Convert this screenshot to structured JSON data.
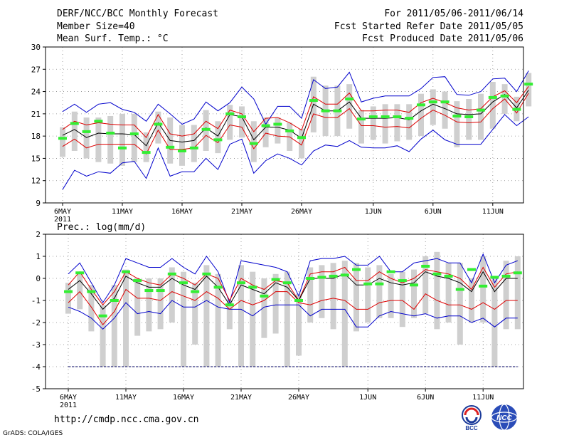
{
  "header": {
    "title": "DERF/NCC/BCC Monthly Forecast",
    "member_size": "Member Size=40",
    "variable": "Mean Surf. Temp.: °C",
    "period": "For 2011/05/06-2011/06/14",
    "started": "Fcst Started Refer Date 2011/05/05",
    "produced": "Fcst Produced Date 2011/05/06"
  },
  "footer": {
    "url": "http://cmdp.ncc.cma.gov.cn",
    "credit": "GrADS: COLA/IGES",
    "logo1_text": "BCC",
    "logo2_text": "NCC"
  },
  "colors": {
    "ensemble_mean": "#000000",
    "spread_band": "#dd0000",
    "extreme_envelope": "#0000cc",
    "median_marker": "#33ee33",
    "box": "#cfcfcf",
    "grid": "#888888"
  },
  "chart_data": [
    {
      "type": "box-line",
      "title": "Mean Surf. Temp.: °C",
      "xlabel": "",
      "ylabel": "°C",
      "ylim": [
        9,
        30
      ],
      "yticks": [
        9,
        12,
        15,
        18,
        21,
        24,
        27,
        30
      ],
      "x_ticks": [
        {
          "day": 1,
          "label": "6MAY",
          "sub": "2011"
        },
        {
          "day": 6,
          "label": "11MAY"
        },
        {
          "day": 11,
          "label": "16MAY"
        },
        {
          "day": 16,
          "label": "21MAY"
        },
        {
          "day": 21,
          "label": "26MAY"
        },
        {
          "day": 27,
          "label": "1JUN"
        },
        {
          "day": 32,
          "label": "6JUN"
        },
        {
          "day": 37,
          "label": "11JUN"
        }
      ],
      "days": 40,
      "series": [
        {
          "name": "max",
          "values": [
            21.3,
            22.3,
            21.2,
            22.3,
            22.5,
            21.6,
            21.2,
            20.0,
            22.3,
            21.0,
            19.6,
            20.3,
            22.6,
            21.4,
            22.5,
            24.6,
            23.0,
            19.6,
            22.0,
            22.0,
            20.4,
            25.6,
            24.4,
            24.6,
            26.6,
            22.6,
            23.1,
            23.4,
            23.4,
            23.4,
            24.4,
            25.9,
            26.0,
            23.6,
            23.5,
            24.0,
            25.7,
            25.8,
            24.0,
            26.8
          ]
        },
        {
          "name": "upper",
          "values": [
            18.9,
            20.0,
            19.5,
            19.8,
            19.6,
            19.5,
            19.5,
            17.8,
            20.9,
            18.3,
            18.0,
            18.3,
            20.0,
            19.0,
            21.5,
            21.0,
            18.6,
            20.4,
            20.5,
            19.8,
            18.8,
            23.3,
            22.3,
            22.3,
            23.8,
            21.4,
            21.4,
            21.5,
            21.5,
            21.2,
            22.5,
            23.1,
            22.5,
            21.8,
            21.5,
            21.7,
            23.3,
            24.1,
            22.5,
            24.7
          ]
        },
        {
          "name": "mean",
          "values": [
            18.1,
            18.9,
            17.8,
            18.4,
            18.3,
            18.3,
            18.2,
            16.7,
            19.8,
            17.4,
            17.2,
            17.4,
            19.1,
            18.0,
            20.9,
            20.6,
            17.5,
            19.2,
            19.2,
            18.8,
            17.7,
            22.3,
            21.4,
            21.4,
            22.6,
            20.4,
            20.4,
            20.4,
            20.5,
            20.2,
            21.4,
            22.3,
            21.7,
            21.0,
            20.9,
            21.0,
            22.6,
            23.6,
            21.8,
            24.2
          ]
        },
        {
          "name": "lower",
          "values": [
            16.6,
            17.6,
            16.4,
            16.9,
            16.9,
            16.9,
            16.9,
            15.6,
            18.8,
            16.2,
            16.2,
            16.4,
            18.1,
            17.1,
            19.5,
            19.2,
            16.3,
            18.4,
            18.0,
            17.9,
            16.8,
            21.0,
            20.5,
            20.5,
            21.7,
            19.4,
            19.4,
            19.2,
            19.3,
            19.1,
            20.4,
            21.5,
            20.8,
            19.9,
            19.8,
            19.9,
            21.7,
            23.0,
            21.1,
            23.8
          ]
        },
        {
          "name": "min",
          "values": [
            10.8,
            13.4,
            12.6,
            13.2,
            13.0,
            14.4,
            14.6,
            12.3,
            16.4,
            12.6,
            13.2,
            13.2,
            15.0,
            13.5,
            16.9,
            17.6,
            13.0,
            14.7,
            15.6,
            15.0,
            14.1,
            16.0,
            16.8,
            16.6,
            17.4,
            16.5,
            16.4,
            16.4,
            16.7,
            15.9,
            17.6,
            18.8,
            17.5,
            16.9,
            16.9,
            16.9,
            18.9,
            20.9,
            19.4,
            20.6
          ]
        },
        {
          "name": "median",
          "values": [
            17.7,
            19.7,
            18.6,
            20.0,
            18.4,
            16.4,
            18.3,
            15.8,
            19.6,
            16.5,
            16.0,
            16.4,
            18.9,
            17.5,
            21.0,
            20.6,
            17.0,
            19.4,
            19.6,
            18.7,
            17.8,
            22.8,
            21.4,
            21.4,
            23.0,
            20.3,
            20.6,
            20.6,
            20.6,
            20.4,
            22.2,
            22.6,
            22.6,
            20.7,
            20.6,
            21.5,
            23.2,
            23.4,
            21.6,
            25.0
          ]
        },
        {
          "name": "box_top",
          "values": [
            19.2,
            21.3,
            20.5,
            20.5,
            20.7,
            21.0,
            21.0,
            18.5,
            21.3,
            20.5,
            19.5,
            19.5,
            21.5,
            20.0,
            22.2,
            22.0,
            20.0,
            20.5,
            20.5,
            19.8,
            19.0,
            26.0,
            24.8,
            24.8,
            25.0,
            21.5,
            22.0,
            22.3,
            22.3,
            22.3,
            23.7,
            24.3,
            24.0,
            22.7,
            23.0,
            23.7,
            25.3,
            25.0,
            23.3,
            26.5
          ]
        },
        {
          "name": "box_bottom",
          "values": [
            15.2,
            16.0,
            15.0,
            14.5,
            14.3,
            14.0,
            14.5,
            14.5,
            17.0,
            14.3,
            14.0,
            14.5,
            16.0,
            15.7,
            17.5,
            17.8,
            14.5,
            16.5,
            17.0,
            16.0,
            15.0,
            18.5,
            18.0,
            18.0,
            19.0,
            17.0,
            17.5,
            17.0,
            17.3,
            17.5,
            18.0,
            19.5,
            19.0,
            16.5,
            17.5,
            17.5,
            19.0,
            21.0,
            20.0,
            22.0
          ]
        }
      ]
    },
    {
      "type": "box-line",
      "title": "Prec.: log(mm/d)",
      "xlabel": "",
      "ylabel": "log(mm/d)",
      "ylim": [
        -5,
        2
      ],
      "yticks": [
        -5,
        -4,
        -3,
        -2,
        -1,
        0,
        1,
        2
      ],
      "x_ticks": [
        {
          "day": 1,
          "label": "6MAY",
          "sub": "2011"
        },
        {
          "day": 6,
          "label": "11MAY"
        },
        {
          "day": 11,
          "label": "16MAY"
        },
        {
          "day": 16,
          "label": "21MAY"
        },
        {
          "day": 21,
          "label": "26MAY"
        },
        {
          "day": 27,
          "label": "1JUN"
        },
        {
          "day": 32,
          "label": "6JUN"
        },
        {
          "day": 37,
          "label": "11JUN"
        }
      ],
      "days": 40,
      "reference_line": -4,
      "series": [
        {
          "name": "max",
          "values": [
            0.2,
            0.7,
            -0.2,
            -1.1,
            -0.3,
            0.9,
            0.7,
            0.5,
            0.5,
            0.9,
            0.5,
            0.2,
            1.0,
            0.3,
            -1.1,
            0.8,
            0.7,
            0.6,
            0.5,
            0.3,
            -0.8,
            0.8,
            0.9,
            0.9,
            1.0,
            0.6,
            0.6,
            1.0,
            0.3,
            0.3,
            0.7,
            0.8,
            0.9,
            0.7,
            0.7,
            -0.2,
            1.1,
            -0.2,
            0.6,
            0.8
          ]
        },
        {
          "name": "upper",
          "values": [
            -0.3,
            0.3,
            -0.5,
            -1.2,
            -0.6,
            0.3,
            0.0,
            -0.2,
            -0.3,
            0.2,
            0.0,
            -0.3,
            0.2,
            0.0,
            -1.0,
            0.0,
            -0.3,
            -0.5,
            -0.1,
            -0.2,
            -1.0,
            0.2,
            0.3,
            0.3,
            0.5,
            -0.1,
            -0.1,
            0.3,
            0.0,
            -0.2,
            0.0,
            0.4,
            0.3,
            0.2,
            0.0,
            -0.5,
            0.5,
            -0.4,
            0.2,
            0.3
          ]
        },
        {
          "name": "mean",
          "values": [
            -0.5,
            -0.1,
            -0.7,
            -1.4,
            -0.9,
            0.1,
            -0.2,
            -0.4,
            -0.4,
            0.0,
            -0.3,
            -0.5,
            0.1,
            -0.4,
            -1.2,
            -0.3,
            -0.5,
            -0.7,
            -0.2,
            -0.4,
            -1.0,
            0.0,
            0.0,
            0.0,
            0.2,
            -0.3,
            -0.3,
            0.0,
            -0.2,
            -0.3,
            -0.2,
            0.3,
            0.1,
            0.0,
            -0.2,
            -0.6,
            0.3,
            -0.6,
            0.0,
            0.0
          ]
        },
        {
          "name": "lower",
          "values": [
            -1.1,
            -0.6,
            -1.3,
            -2.1,
            -1.5,
            -0.5,
            -0.9,
            -0.9,
            -1.0,
            -0.6,
            -0.8,
            -1.0,
            -0.6,
            -0.9,
            -1.4,
            -1.0,
            -1.2,
            -1.0,
            -0.6,
            -0.6,
            -1.1,
            -1.2,
            -1.0,
            -0.9,
            -1.0,
            -1.4,
            -1.4,
            -1.1,
            -1.0,
            -1.0,
            -1.4,
            -0.7,
            -1.0,
            -1.2,
            -1.2,
            -1.4,
            -1.1,
            -1.4,
            -1.0,
            -1.0
          ]
        },
        {
          "name": "min",
          "values": [
            -1.3,
            -1.5,
            -1.8,
            -2.3,
            -1.8,
            -1.1,
            -1.6,
            -1.5,
            -1.6,
            -1.0,
            -1.3,
            -1.3,
            -1.0,
            -1.3,
            -1.4,
            -1.4,
            -1.7,
            -1.3,
            -1.2,
            -1.2,
            -1.2,
            -1.7,
            -1.4,
            -1.4,
            -1.4,
            -2.2,
            -2.2,
            -1.7,
            -1.5,
            -1.6,
            -1.7,
            -1.6,
            -1.8,
            -1.7,
            -1.7,
            -2.0,
            -1.8,
            -2.2,
            -1.8,
            -1.8
          ]
        },
        {
          "name": "median",
          "values": [
            -0.6,
            0.25,
            -0.6,
            -1.7,
            -1.0,
            0.3,
            -0.1,
            -0.55,
            -0.55,
            0.2,
            -0.2,
            -0.6,
            0.2,
            -0.4,
            -1.2,
            -0.2,
            -0.4,
            -0.8,
            -0.05,
            -0.2,
            -1.0,
            0.0,
            0.05,
            0.1,
            0.15,
            0.4,
            -0.25,
            -0.25,
            0.3,
            -0.1,
            -0.3,
            0.55,
            0.2,
            0.1,
            -0.5,
            0.4,
            -0.35,
            0.05,
            0.1,
            0.25
          ]
        },
        {
          "name": "box_top",
          "values": [
            -0.2,
            0.3,
            -0.3,
            -1.2,
            -0.3,
            0.4,
            0.0,
            0.0,
            0.0,
            0.5,
            0.3,
            -0.2,
            0.6,
            0.2,
            -1.0,
            0.6,
            0.3,
            0.0,
            0.2,
            0.3,
            -0.7,
            0.5,
            0.6,
            0.7,
            0.8,
            0.7,
            0.5,
            0.6,
            0.2,
            0.3,
            0.4,
            1.0,
            1.2,
            0.7,
            0.7,
            0.0,
            1.0,
            0.0,
            0.8,
            1.0
          ]
        },
        {
          "name": "box_bottom",
          "values": [
            -1.6,
            -1.4,
            -2.4,
            -4.0,
            -4.0,
            -4.0,
            -2.6,
            -2.4,
            -2.3,
            -2.0,
            -4.0,
            -3.0,
            -4.0,
            -4.0,
            -2.3,
            -4.0,
            -4.0,
            -2.7,
            -2.5,
            -4.0,
            -3.5,
            -2.0,
            -1.8,
            -2.3,
            -4.0,
            -2.4,
            -2.0,
            -1.8,
            -1.8,
            -2.2,
            -1.8,
            -1.6,
            -2.3,
            -2.0,
            -3.0,
            -2.0,
            -2.0,
            -4.0,
            -2.3,
            -2.3
          ]
        }
      ]
    }
  ]
}
